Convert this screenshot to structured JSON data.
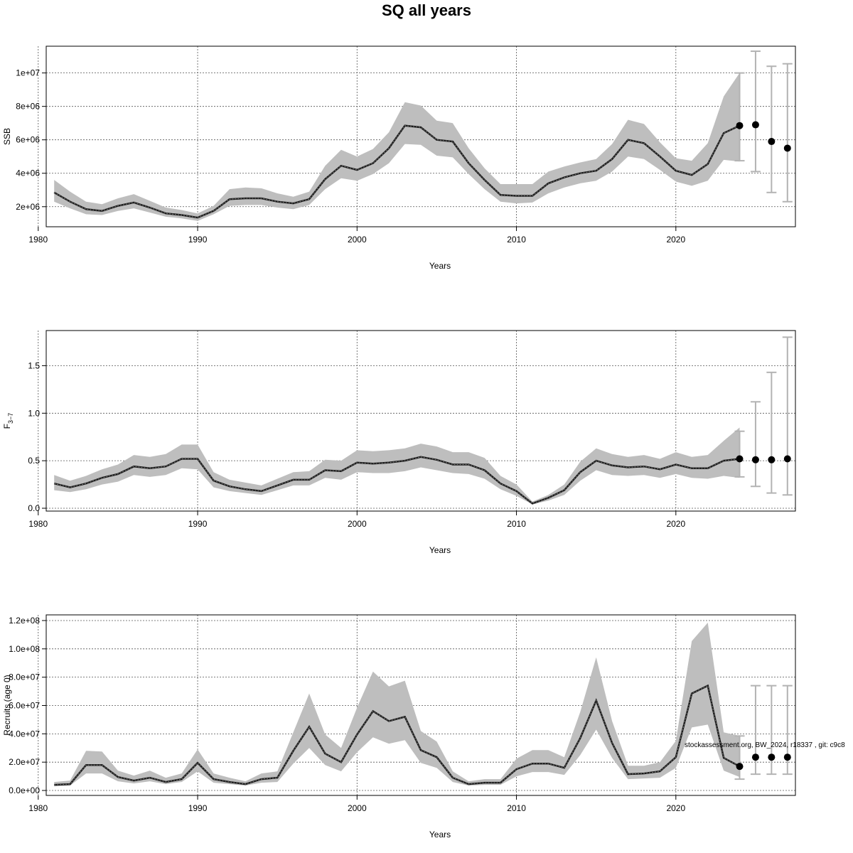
{
  "title": "SQ all years",
  "footnote": "stockassessment.org, BW_2024, r18337 , git: c9c8",
  "colors": {
    "band": "#bebebe",
    "line": "#1a1a1a",
    "grid": "#555555",
    "errorbar": "#b3b3b3",
    "point": "#000000"
  },
  "chart_data": [
    {
      "type": "line",
      "name": "SSB",
      "ylabel": "SSB",
      "xlabel": "Years",
      "xlim": [
        1980.5,
        2027.5
      ],
      "ylim": [
        800000,
        11600000
      ],
      "xticks": [
        1980,
        1990,
        2000,
        2010,
        2020
      ],
      "xtick_labels": [
        "1980",
        "1990",
        "2000",
        "2010",
        "2020"
      ],
      "yticks": [
        2000000,
        4000000,
        6000000,
        8000000,
        10000000
      ],
      "ytick_labels": [
        "2e+06",
        "4e+06",
        "6e+06",
        "8e+06",
        "1e+07"
      ],
      "grid": true,
      "series": {
        "years": [
          1981,
          1982,
          1983,
          1984,
          1985,
          1986,
          1987,
          1988,
          1989,
          1990,
          1991,
          1992,
          1993,
          1994,
          1995,
          1996,
          1997,
          1998,
          1999,
          2000,
          2001,
          2002,
          2003,
          2004,
          2005,
          2006,
          2007,
          2008,
          2009,
          2010,
          2011,
          2012,
          2013,
          2014,
          2015,
          2016,
          2017,
          2018,
          2019,
          2020,
          2021,
          2022,
          2023,
          2024
        ],
        "estimate": [
          2850000,
          2300000,
          1850000,
          1750000,
          2050000,
          2250000,
          1950000,
          1600000,
          1500000,
          1350000,
          1750000,
          2450000,
          2500000,
          2500000,
          2300000,
          2200000,
          2450000,
          3650000,
          4450000,
          4200000,
          4600000,
          5500000,
          6850000,
          6750000,
          6000000,
          5900000,
          4600000,
          3600000,
          2700000,
          2650000,
          2650000,
          3400000,
          3750000,
          4000000,
          4150000,
          4850000,
          6000000,
          5800000,
          5000000,
          4150000,
          3900000,
          4550000,
          6400000,
          6850000
        ],
        "lower": [
          2300000,
          1900000,
          1550000,
          1500000,
          1750000,
          1900000,
          1650000,
          1400000,
          1300000,
          1150000,
          1550000,
          2050000,
          2100000,
          2100000,
          1950000,
          1850000,
          2100000,
          3050000,
          3700000,
          3550000,
          3950000,
          4600000,
          5750000,
          5700000,
          5050000,
          4950000,
          3950000,
          3050000,
          2300000,
          2200000,
          2250000,
          2800000,
          3150000,
          3400000,
          3550000,
          4100000,
          5000000,
          4850000,
          4200000,
          3500000,
          3250000,
          3550000,
          4800000,
          4700000
        ],
        "upper": [
          3600000,
          2900000,
          2300000,
          2150000,
          2500000,
          2750000,
          2350000,
          1950000,
          1800000,
          1600000,
          2050000,
          3050000,
          3150000,
          3100000,
          2800000,
          2600000,
          2900000,
          4450000,
          5400000,
          5000000,
          5450000,
          6450000,
          8250000,
          8050000,
          7150000,
          7000000,
          5500000,
          4300000,
          3350000,
          3350000,
          3350000,
          4100000,
          4400000,
          4650000,
          4850000,
          5750000,
          7200000,
          6950000,
          5850000,
          4900000,
          4750000,
          5800000,
          8600000,
          10000000
        ]
      },
      "forecast": {
        "years": [
          2024,
          2025,
          2026,
          2027
        ],
        "median": [
          6850000,
          6900000,
          5900000,
          5500000
        ],
        "lower": [
          4750000,
          4100000,
          2850000,
          2300000
        ],
        "upper": [
          10000000,
          11300000,
          10400000,
          10550000
        ]
      }
    },
    {
      "type": "line",
      "name": "F3-7",
      "ylabel": "F",
      "ylabel_sub": "3−7",
      "xlabel": "Years",
      "xlim": [
        1980.5,
        2027.5
      ],
      "ylim": [
        -0.03,
        1.87
      ],
      "xticks": [
        1980,
        1990,
        2000,
        2010,
        2020
      ],
      "xtick_labels": [
        "1980",
        "1990",
        "2000",
        "2010",
        "2020"
      ],
      "yticks": [
        0,
        0.5,
        1,
        1.5
      ],
      "ytick_labels": [
        "0.0",
        "0.5",
        "1.0",
        "1.5"
      ],
      "grid": true,
      "series": {
        "years": [
          1981,
          1982,
          1983,
          1984,
          1985,
          1986,
          1987,
          1988,
          1989,
          1990,
          1991,
          1992,
          1993,
          1994,
          1995,
          1996,
          1997,
          1998,
          1999,
          2000,
          2001,
          2002,
          2003,
          2004,
          2005,
          2006,
          2007,
          2008,
          2009,
          2010,
          2011,
          2012,
          2013,
          2014,
          2015,
          2016,
          2017,
          2018,
          2019,
          2020,
          2021,
          2022,
          2023,
          2024
        ],
        "estimate": [
          0.26,
          0.22,
          0.26,
          0.32,
          0.36,
          0.44,
          0.42,
          0.44,
          0.52,
          0.52,
          0.29,
          0.23,
          0.2,
          0.18,
          0.24,
          0.3,
          0.3,
          0.4,
          0.39,
          0.48,
          0.47,
          0.48,
          0.5,
          0.54,
          0.51,
          0.46,
          0.46,
          0.4,
          0.26,
          0.18,
          0.05,
          0.11,
          0.19,
          0.38,
          0.5,
          0.45,
          0.43,
          0.44,
          0.41,
          0.46,
          0.42,
          0.42,
          0.5,
          0.52
        ],
        "lower": [
          0.19,
          0.17,
          0.2,
          0.25,
          0.28,
          0.35,
          0.33,
          0.35,
          0.42,
          0.41,
          0.22,
          0.18,
          0.16,
          0.14,
          0.19,
          0.24,
          0.24,
          0.32,
          0.3,
          0.38,
          0.37,
          0.37,
          0.39,
          0.43,
          0.4,
          0.37,
          0.36,
          0.31,
          0.2,
          0.13,
          0.04,
          0.08,
          0.14,
          0.29,
          0.4,
          0.35,
          0.34,
          0.35,
          0.32,
          0.36,
          0.32,
          0.31,
          0.34,
          0.32
        ],
        "upper": [
          0.35,
          0.29,
          0.34,
          0.41,
          0.46,
          0.56,
          0.54,
          0.57,
          0.67,
          0.67,
          0.38,
          0.3,
          0.27,
          0.24,
          0.31,
          0.38,
          0.39,
          0.51,
          0.5,
          0.61,
          0.6,
          0.61,
          0.63,
          0.68,
          0.65,
          0.59,
          0.59,
          0.53,
          0.34,
          0.25,
          0.07,
          0.14,
          0.25,
          0.49,
          0.63,
          0.57,
          0.54,
          0.56,
          0.52,
          0.59,
          0.54,
          0.56,
          0.71,
          0.85
        ]
      },
      "forecast": {
        "years": [
          2024,
          2025,
          2026,
          2027
        ],
        "median": [
          0.52,
          0.51,
          0.51,
          0.52
        ],
        "lower": [
          0.33,
          0.23,
          0.16,
          0.14
        ],
        "upper": [
          0.81,
          1.12,
          1.43,
          1.8
        ]
      }
    },
    {
      "type": "line",
      "name": "Recruits (age 0)",
      "ylabel": "Recruits (age 0)",
      "xlabel": "Years",
      "xlim": [
        1980.5,
        2027.5
      ],
      "ylim": [
        -3500000,
        124000000
      ],
      "xticks": [
        1980,
        1990,
        2000,
        2010,
        2020
      ],
      "xtick_labels": [
        "1980",
        "1990",
        "2000",
        "2010",
        "2020"
      ],
      "yticks": [
        0,
        20000000,
        40000000,
        60000000,
        80000000,
        100000000,
        120000000
      ],
      "ytick_labels": [
        "0.0e+00",
        "2.0e+07",
        "4.0e+07",
        "6.0e+07",
        "8.0e+07",
        "1.0e+08",
        "1.2e+08"
      ],
      "grid": true,
      "series": {
        "years": [
          1981,
          1982,
          1983,
          1984,
          1985,
          1986,
          1987,
          1988,
          1989,
          1990,
          1991,
          1992,
          1993,
          1994,
          1995,
          1996,
          1997,
          1998,
          1999,
          2000,
          2001,
          2002,
          2003,
          2004,
          2005,
          2006,
          2007,
          2008,
          2009,
          2010,
          2011,
          2012,
          2013,
          2014,
          2015,
          2016,
          2017,
          2018,
          2019,
          2020,
          2021,
          2022,
          2023,
          2024
        ],
        "estimate": [
          4000000,
          4500000,
          18000000,
          18000000,
          9500000,
          7000000,
          9000000,
          6000000,
          8000000,
          19500000,
          8000000,
          6000000,
          4500000,
          8000000,
          9000000,
          28000000,
          45000000,
          26000000,
          20000000,
          39500000,
          56000000,
          49000000,
          52000000,
          28500000,
          23500000,
          9000000,
          4500000,
          5500000,
          5500000,
          15000000,
          19000000,
          19000000,
          16000000,
          37000000,
          63500000,
          33500000,
          11500000,
          12000000,
          13500000,
          23500000,
          68500000,
          74000000,
          23000000,
          17000000
        ],
        "lower": [
          3000000,
          3500000,
          12000000,
          12000000,
          6500000,
          5000000,
          6500000,
          4500000,
          6000000,
          13500000,
          5500000,
          4500000,
          3500000,
          5500000,
          6000000,
          19000000,
          30000000,
          18000000,
          13500000,
          27000000,
          37500000,
          33000000,
          35500000,
          19500000,
          16000000,
          6000000,
          3500000,
          4000000,
          4000000,
          10000000,
          13000000,
          13000000,
          11000000,
          25000000,
          43000000,
          23000000,
          8000000,
          8500000,
          9000000,
          16000000,
          44500000,
          46500000,
          14000000,
          9500000
        ],
        "upper": [
          6000000,
          7000000,
          28000000,
          27500000,
          14000000,
          10500000,
          14000000,
          9000000,
          12000000,
          29000000,
          12000000,
          9000000,
          6500000,
          12000000,
          13500000,
          41000000,
          68500000,
          39500000,
          30000000,
          58500000,
          84000000,
          73500000,
          77500000,
          42000000,
          34500000,
          13500000,
          6500000,
          8000000,
          8000000,
          22500000,
          28500000,
          28500000,
          23500000,
          55500000,
          94000000,
          49000000,
          17500000,
          17500000,
          20000000,
          35000000,
          105500000,
          118500000,
          41000000,
          38500000
        ]
      },
      "forecast": {
        "years": [
          2024,
          2025,
          2026,
          2027
        ],
        "median": [
          17000000,
          23500000,
          23500000,
          23500000
        ],
        "lower": [
          8000000,
          11500000,
          11500000,
          11500000
        ],
        "upper": [
          38500000,
          74000000,
          74000000,
          74000000
        ]
      }
    }
  ]
}
